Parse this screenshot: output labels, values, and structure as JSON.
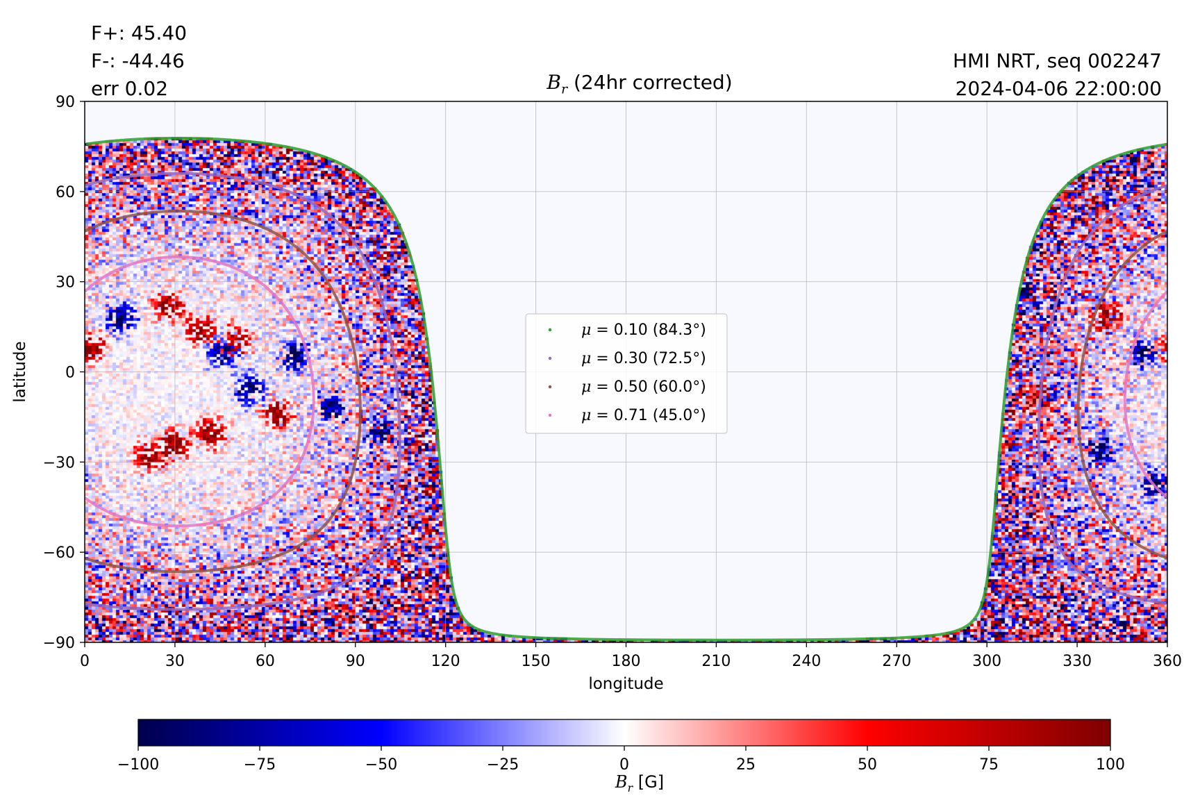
{
  "header": {
    "flux_positive": "F+: 45.40",
    "flux_negative": "F-: -44.46",
    "error": "err 0.02",
    "source": "HMI NRT, seq 002247",
    "datetime": "2024-04-06 22:00:00",
    "title_symbol": "B",
    "title_subscript": "r",
    "title_suffix": " (24hr corrected)"
  },
  "chart_data": [
    {
      "type": "heatmap",
      "title": "B_r (24hr corrected)",
      "xlabel": "longitude",
      "ylabel": "latitude",
      "xlim": [
        0,
        360
      ],
      "ylim": [
        -90,
        90
      ],
      "xticks": [
        0,
        30,
        60,
        90,
        120,
        150,
        180,
        210,
        240,
        270,
        300,
        330,
        360
      ],
      "yticks": [
        -90,
        -60,
        -30,
        0,
        30,
        60,
        90
      ],
      "xtick_labels": [
        "0",
        "30",
        "60",
        "90",
        "120",
        "150",
        "180",
        "210",
        "240",
        "270",
        "300",
        "330",
        "360"
      ],
      "ytick_labels": [
        "−90",
        "−60",
        "−30",
        "0",
        "30",
        "60",
        "90"
      ],
      "grid": true,
      "colormap": "seismic",
      "color_range": [
        -100,
        100
      ],
      "no_data_color": "#f8f8ff",
      "observed_disk_center_longitude": 31,
      "observed_disk_center_latitude": -6.5,
      "legend_position": "center",
      "legend": [
        {
          "label_math": "μ = ",
          "label_value": "0.10 (84.3°)",
          "mu": 0.1,
          "angle_deg": 84.3,
          "color": "#2ca02c"
        },
        {
          "label_math": "μ = ",
          "label_value": "0.30 (72.5°)",
          "mu": 0.3,
          "angle_deg": 72.5,
          "color": "#9467bd"
        },
        {
          "label_math": "μ = ",
          "label_value": "0.50 (60.0°)",
          "mu": 0.5,
          "angle_deg": 60.0,
          "color": "#8c564b"
        },
        {
          "label_math": "μ = ",
          "label_value": "0.71 (45.0°)",
          "mu": 0.71,
          "angle_deg": 45.0,
          "color": "#e377c2"
        }
      ],
      "features": [
        {
          "longitude": 28,
          "latitude": 22,
          "polarity": "positive"
        },
        {
          "longitude": 38,
          "latitude": 14,
          "polarity": "positive"
        },
        {
          "longitude": 50,
          "latitude": 10,
          "polarity": "positive"
        },
        {
          "longitude": 64,
          "latitude": -14,
          "polarity": "positive"
        },
        {
          "longitude": 30,
          "latitude": -24,
          "polarity": "positive"
        },
        {
          "longitude": 42,
          "latitude": -20,
          "polarity": "positive"
        },
        {
          "longitude": 22,
          "latitude": -28,
          "polarity": "positive"
        },
        {
          "longitude": 2,
          "latitude": 8,
          "polarity": "positive"
        },
        {
          "longitude": 316,
          "latitude": -8,
          "polarity": "positive"
        },
        {
          "longitude": 340,
          "latitude": 18,
          "polarity": "positive"
        },
        {
          "longitude": 12,
          "latitude": 18,
          "polarity": "negative"
        },
        {
          "longitude": 46,
          "latitude": 6,
          "polarity": "negative"
        },
        {
          "longitude": 70,
          "latitude": 5,
          "polarity": "negative"
        },
        {
          "longitude": 82,
          "latitude": -12,
          "polarity": "negative"
        },
        {
          "longitude": 55,
          "latitude": -6,
          "polarity": "negative"
        },
        {
          "longitude": 98,
          "latitude": -20,
          "polarity": "negative"
        },
        {
          "longitude": 352,
          "latitude": 6,
          "polarity": "negative"
        },
        {
          "longitude": 338,
          "latitude": -26,
          "polarity": "negative"
        },
        {
          "longitude": 312,
          "latitude": 26,
          "polarity": "negative"
        },
        {
          "longitude": 356,
          "latitude": -38,
          "polarity": "negative"
        }
      ]
    },
    {
      "type": "colorbar",
      "xlabel_symbol": "B",
      "xlabel_subscript": "r",
      "xlabel_units": " [G]",
      "range": [
        -100,
        100
      ],
      "ticks": [
        -100,
        -75,
        -50,
        -25,
        0,
        25,
        50,
        75,
        100
      ],
      "tick_labels": [
        "−100",
        "−75",
        "−50",
        "−25",
        "0",
        "25",
        "50",
        "75",
        "100"
      ],
      "colormap": "seismic"
    }
  ]
}
